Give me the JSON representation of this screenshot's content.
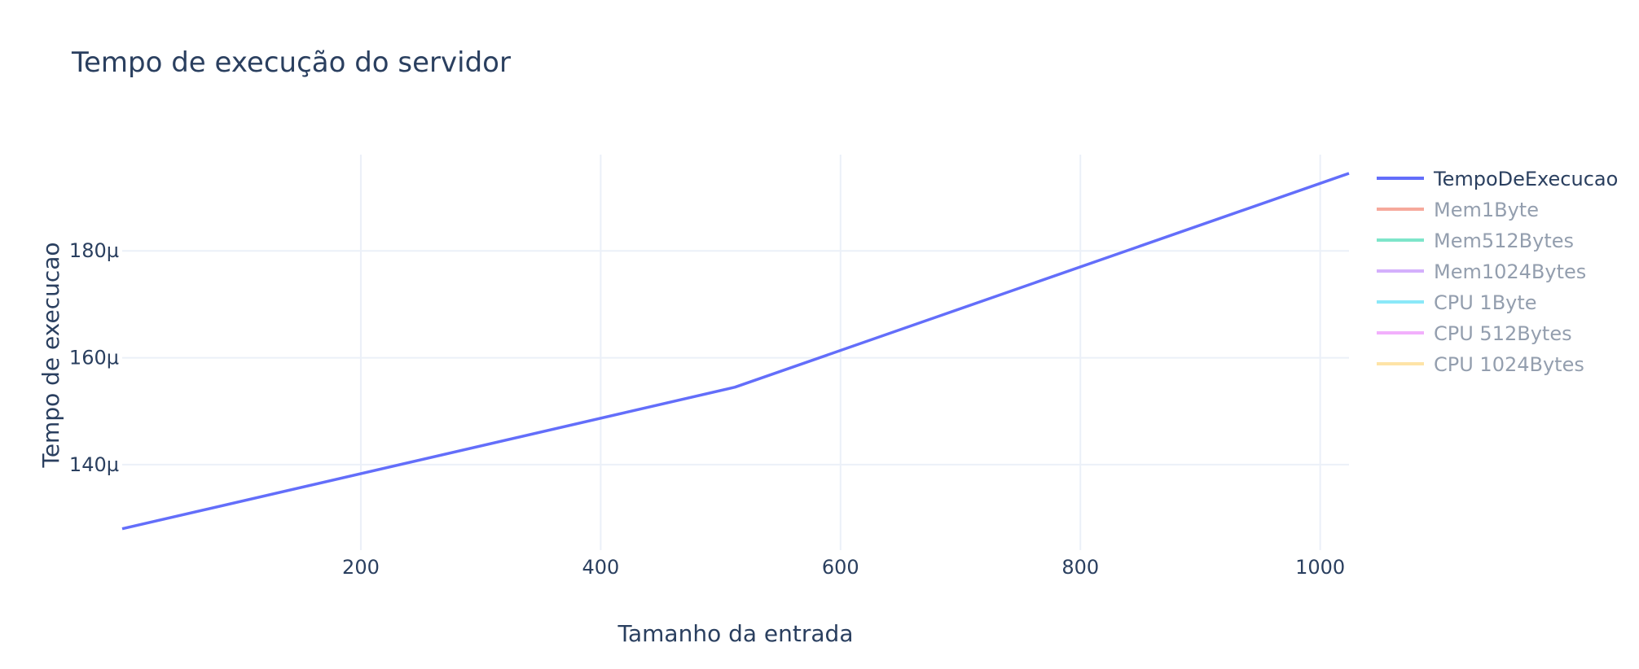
{
  "chart_data": {
    "type": "line",
    "title": "Tempo de execução do servidor",
    "xlabel": "Tamanho da entrada",
    "ylabel": "Tempo de execucao",
    "xlim": [
      1,
      1024
    ],
    "ylim": [
      124,
      198
    ],
    "x_ticks": [
      200,
      400,
      600,
      800,
      1000
    ],
    "x_tick_labels": [
      "200",
      "400",
      "600",
      "800",
      "1000"
    ],
    "y_ticks": [
      140,
      160,
      180
    ],
    "y_tick_labels": [
      "140µ",
      "160µ",
      "180µ"
    ],
    "y_unit": "µs",
    "grid": true,
    "legend_position": "right",
    "series": [
      {
        "name": "TempoDeExecucao",
        "color": "#636efa",
        "visible": true,
        "x": [
          1,
          512,
          1024
        ],
        "y": [
          128,
          154.5,
          194.5
        ]
      },
      {
        "name": "Mem1Byte",
        "color": "#EF553B",
        "visible": false,
        "x": [],
        "y": []
      },
      {
        "name": "Mem512Bytes",
        "color": "#00cc96",
        "visible": false,
        "x": [],
        "y": []
      },
      {
        "name": "Mem1024Bytes",
        "color": "#ab63fa",
        "visible": false,
        "x": [],
        "y": []
      },
      {
        "name": "CPU 1Byte",
        "color": "#19d3f3",
        "visible": false,
        "x": [],
        "y": []
      },
      {
        "name": "CPU 512Bytes",
        "color": "#e763fa",
        "visible": false,
        "x": [],
        "y": []
      },
      {
        "name": "CPU 1024Bytes",
        "color": "#FECB52",
        "visible": false,
        "x": [],
        "y": []
      }
    ]
  }
}
